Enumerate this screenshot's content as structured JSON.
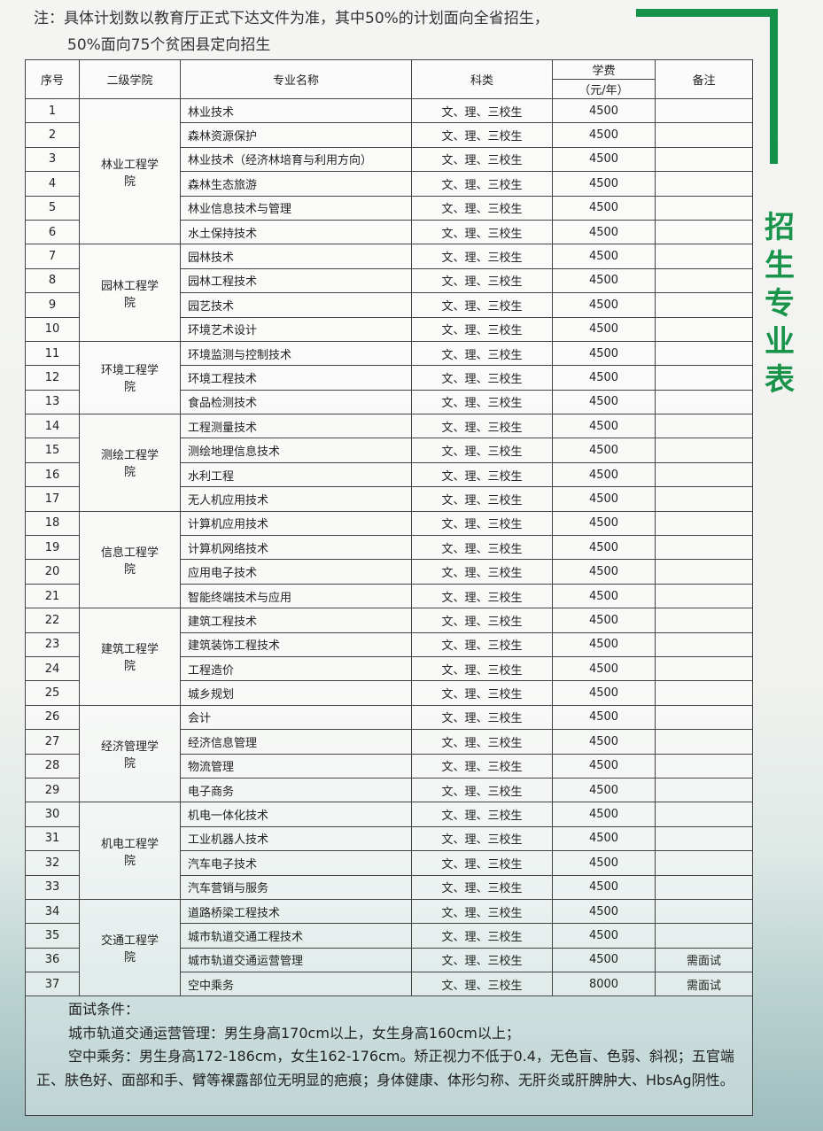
{
  "note": {
    "line1": "注：具体计划数以教育厅正式下达文件为准，其中50%的计划面向全省招生，",
    "line2": "50%面向75个贫困县定向招生"
  },
  "side_title": "招生专业表",
  "accent_color": "#15924a",
  "table": {
    "headers": {
      "seq": "序号",
      "college": "二级学院",
      "major": "专业名称",
      "category": "科类",
      "fee": "学费",
      "fee_unit": "（元/年）",
      "remark": "备注"
    },
    "groups": [
      {
        "college": "林业工程学院",
        "majors": [
          "林业技术",
          "森林资源保护",
          "林业技术（经济林培育与利用方向）",
          "森林生态旅游",
          "林业信息技术与管理",
          "水土保持技术"
        ]
      },
      {
        "college": "园林工程学院",
        "majors": [
          "园林技术",
          "园林工程技术",
          "园艺技术",
          "环境艺术设计"
        ]
      },
      {
        "college": "环境工程学院",
        "majors": [
          "环境监测与控制技术",
          "环境工程技术",
          "食品检测技术"
        ]
      },
      {
        "college": "测绘工程学院",
        "majors": [
          "工程测量技术",
          "测绘地理信息技术",
          "水利工程",
          "无人机应用技术"
        ]
      },
      {
        "college": "信息工程学院",
        "majors": [
          "计算机应用技术",
          "计算机网络技术",
          "应用电子技术",
          "智能终端技术与应用"
        ]
      },
      {
        "college": "建筑工程学院",
        "majors": [
          "建筑工程技术",
          "建筑装饰工程技术",
          "工程造价",
          "城乡规划"
        ]
      },
      {
        "college": "经济管理学院",
        "majors": [
          "会计",
          "经济信息管理",
          "物流管理",
          "电子商务"
        ]
      },
      {
        "college": "机电工程学院",
        "majors": [
          "机电一体化技术",
          "工业机器人技术",
          "汽车电子技术",
          "汽车营销与服务"
        ]
      },
      {
        "college": "交通工程学院",
        "majors": [
          "道路桥梁工程技术",
          "城市轨道交通工程技术",
          "城市轨道交通运营管理",
          "空中乘务"
        ]
      }
    ],
    "category": "文、理、三校生",
    "default_fee": "4500",
    "special": {
      "36": {
        "remark": "需面试"
      },
      "37": {
        "fee": "8000",
        "remark": "需面试"
      }
    }
  },
  "conditions": {
    "title": "面试条件：",
    "line1": "城市轨道交通运营管理：男生身高170cm以上，女生身高160cm以上；",
    "line2": "空中乘务：男生身高172-186cm，女生162-176cm。矫正视力不低于0.4，无色盲、色弱、斜视；五官端正、肤色好、面部和手、臂等裸露部位无明显的疤痕；身体健康、体形匀称、无肝炎或肝脾肿大、HbsAg阴性。"
  }
}
